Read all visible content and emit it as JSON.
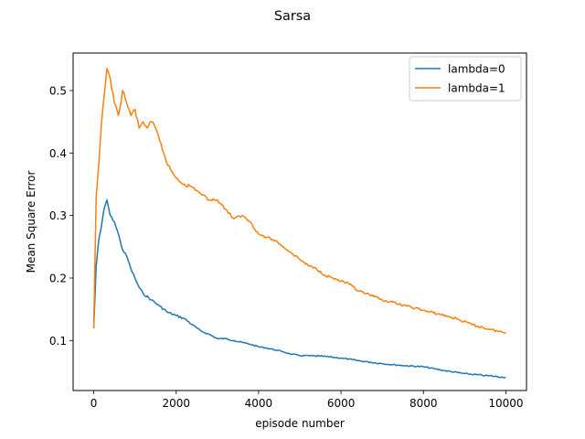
{
  "chart_data": {
    "type": "line",
    "title": "Sarsa",
    "xlabel": "episode number",
    "ylabel": "Mean Square Error",
    "xlim": [
      -500,
      10500
    ],
    "ylim": [
      0.02,
      0.56
    ],
    "xticks": [
      0,
      2000,
      4000,
      6000,
      8000,
      10000
    ],
    "xtick_labels": [
      "0",
      "2000",
      "4000",
      "6000",
      "8000",
      "10000"
    ],
    "yticks": [
      0.1,
      0.2,
      0.3,
      0.4,
      0.5
    ],
    "ytick_labels": [
      "0.1",
      "0.2",
      "0.3",
      "0.4",
      "0.5"
    ],
    "grid": false,
    "legend_position": "top-right",
    "series": [
      {
        "name": "lambda=0",
        "color": "#1f77b4",
        "x": [
          0,
          60,
          120,
          180,
          250,
          320,
          400,
          500,
          600,
          700,
          800,
          900,
          1000,
          1100,
          1200,
          1400,
          1600,
          1800,
          2000,
          2200,
          2400,
          2600,
          2800,
          3000,
          3200,
          3400,
          3600,
          3800,
          4000,
          4200,
          4400,
          4600,
          4800,
          5000,
          5500,
          6000,
          6500,
          7000,
          7500,
          8000,
          8500,
          9000,
          9500,
          10000
        ],
        "y": [
          0.12,
          0.22,
          0.26,
          0.28,
          0.31,
          0.325,
          0.3,
          0.29,
          0.27,
          0.245,
          0.235,
          0.215,
          0.2,
          0.185,
          0.175,
          0.165,
          0.155,
          0.145,
          0.14,
          0.135,
          0.125,
          0.115,
          0.11,
          0.103,
          0.103,
          0.1,
          0.097,
          0.094,
          0.09,
          0.088,
          0.085,
          0.082,
          0.078,
          0.076,
          0.075,
          0.072,
          0.067,
          0.063,
          0.06,
          0.058,
          0.052,
          0.047,
          0.044,
          0.041
        ]
      },
      {
        "name": "lambda=1",
        "color": "#ff7f0e",
        "x": [
          0,
          60,
          120,
          180,
          250,
          320,
          400,
          500,
          600,
          700,
          800,
          900,
          1000,
          1100,
          1200,
          1300,
          1400,
          1500,
          1600,
          1700,
          1800,
          1900,
          2000,
          2200,
          2400,
          2600,
          2800,
          3000,
          3200,
          3400,
          3600,
          3800,
          4000,
          4200,
          4400,
          4600,
          4800,
          5000,
          5200,
          5400,
          5600,
          5800,
          6000,
          6200,
          6400,
          6600,
          6800,
          7000,
          7200,
          7400,
          7600,
          7800,
          8000,
          8400,
          8800,
          9200,
          9600,
          10000
        ],
        "y": [
          0.12,
          0.33,
          0.38,
          0.44,
          0.49,
          0.535,
          0.52,
          0.48,
          0.46,
          0.5,
          0.48,
          0.46,
          0.47,
          0.44,
          0.45,
          0.44,
          0.45,
          0.44,
          0.42,
          0.4,
          0.38,
          0.37,
          0.36,
          0.35,
          0.345,
          0.335,
          0.325,
          0.325,
          0.31,
          0.295,
          0.3,
          0.29,
          0.27,
          0.265,
          0.26,
          0.25,
          0.24,
          0.23,
          0.22,
          0.215,
          0.205,
          0.2,
          0.195,
          0.19,
          0.18,
          0.175,
          0.17,
          0.165,
          0.162,
          0.158,
          0.155,
          0.152,
          0.148,
          0.142,
          0.135,
          0.125,
          0.118,
          0.112
        ]
      }
    ]
  }
}
